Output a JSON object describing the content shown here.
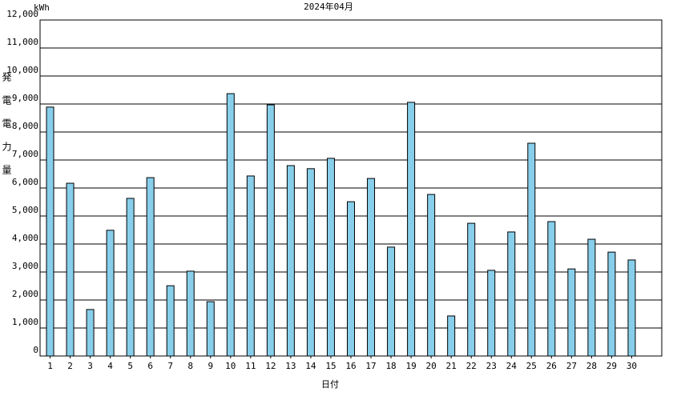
{
  "chart_data": {
    "type": "bar",
    "title": "2024年04月",
    "y_unit": "kWh",
    "y_label": "発電電力量",
    "x_label": "日付",
    "categories": [
      "1",
      "2",
      "3",
      "4",
      "5",
      "6",
      "7",
      "8",
      "9",
      "10",
      "11",
      "12",
      "13",
      "14",
      "15",
      "16",
      "17",
      "18",
      "19",
      "20",
      "21",
      "22",
      "23",
      "24",
      "25",
      "26",
      "27",
      "28",
      "29",
      "30"
    ],
    "values": [
      8890,
      6170,
      1660,
      4490,
      5630,
      6370,
      2510,
      3030,
      1940,
      9370,
      6430,
      8970,
      6800,
      6690,
      7060,
      5510,
      6340,
      3890,
      9060,
      5770,
      1430,
      4740,
      3060,
      4430,
      7600,
      4800,
      3110,
      4170,
      3710,
      3430
    ],
    "color": "#87ceeb",
    "ylim": [
      0,
      12000
    ],
    "yticks": [
      0,
      {
        "value": 1000,
        "label": "1,000"
      },
      {
        "value": 2000,
        "label": "2,000"
      },
      {
        "value": 3000,
        "label": "3,000"
      },
      {
        "value": 4000,
        "label": "4,000"
      },
      {
        "value": 5000,
        "label": "5,000"
      },
      {
        "value": 6000,
        "label": "6,000"
      },
      {
        "value": 7000,
        "label": "7,000"
      },
      {
        "value": 8000,
        "label": "8,000"
      },
      {
        "value": 9000,
        "label": "9,000"
      },
      {
        "value": 10000,
        "label": "10,000"
      },
      {
        "value": 11000,
        "label": "11,000"
      },
      {
        "value": 12000,
        "label": "12,000"
      }
    ],
    "grid": true
  }
}
